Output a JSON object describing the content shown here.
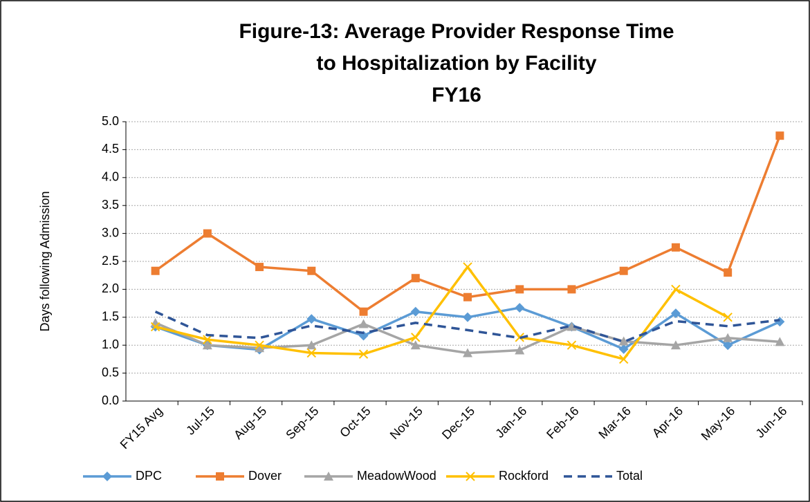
{
  "chart_data": {
    "type": "line",
    "title": [
      "Figure-13:  Average Provider Response Time",
      "to Hospitalization by Facility",
      "FY16"
    ],
    "y_label": "Days following Admission",
    "categories": [
      "FY15 Avg",
      "Jul-15",
      "Aug-15",
      "Sep-15",
      "Oct-15",
      "Nov-15",
      "Dec-15",
      "Jan-16",
      "Feb-16",
      "Mar-16",
      "Apr-16",
      "May-16",
      "Jun-16"
    ],
    "series": [
      {
        "name": "DPC",
        "color": "#5b9bd5",
        "marker": "diamond",
        "dashed": false,
        "values": [
          1.33,
          1.0,
          0.92,
          1.47,
          1.17,
          1.6,
          1.5,
          1.67,
          1.33,
          0.93,
          1.57,
          1.0,
          1.42
        ]
      },
      {
        "name": "Dover",
        "color": "#ed7d31",
        "marker": "square",
        "dashed": false,
        "values": [
          2.33,
          3.0,
          2.4,
          2.33,
          1.6,
          2.2,
          1.86,
          2.0,
          2.0,
          2.33,
          2.75,
          2.3,
          4.75
        ]
      },
      {
        "name": "MeadowWood",
        "color": "#a5a5a5",
        "marker": "triangle",
        "dashed": false,
        "values": [
          1.4,
          1.0,
          0.95,
          1.0,
          1.38,
          1.0,
          0.86,
          0.91,
          1.33,
          1.07,
          1.0,
          1.13,
          1.06
        ]
      },
      {
        "name": "Rockford",
        "color": "#ffc000",
        "marker": "x",
        "dashed": false,
        "values": [
          1.33,
          1.1,
          1.0,
          0.86,
          0.84,
          1.14,
          2.4,
          1.14,
          1.0,
          0.75,
          2.0,
          1.5,
          null
        ]
      },
      {
        "name": "Total",
        "color": "#2f5597",
        "marker": "none",
        "dashed": true,
        "values": [
          1.6,
          1.18,
          1.13,
          1.35,
          1.22,
          1.4,
          1.27,
          1.13,
          1.35,
          1.06,
          1.43,
          1.34,
          1.45
        ]
      }
    ],
    "ylim": [
      0,
      5
    ],
    "yticks": [
      {
        "value": 0,
        "label": "0.0"
      },
      {
        "value": 0.5,
        "label": "0.5"
      },
      {
        "value": 1,
        "label": "1.0"
      },
      {
        "value": 1.5,
        "label": "1.5"
      },
      {
        "value": 2,
        "label": "2.0"
      },
      {
        "value": 2.5,
        "label": "2.5"
      },
      {
        "value": 3,
        "label": "3.0"
      },
      {
        "value": 3.5,
        "label": "3.5"
      },
      {
        "value": 4,
        "label": "4.0"
      },
      {
        "value": 4.5,
        "label": "4.5"
      },
      {
        "value": 5,
        "label": "5.0"
      }
    ],
    "grid": true,
    "legend": "bottom"
  }
}
